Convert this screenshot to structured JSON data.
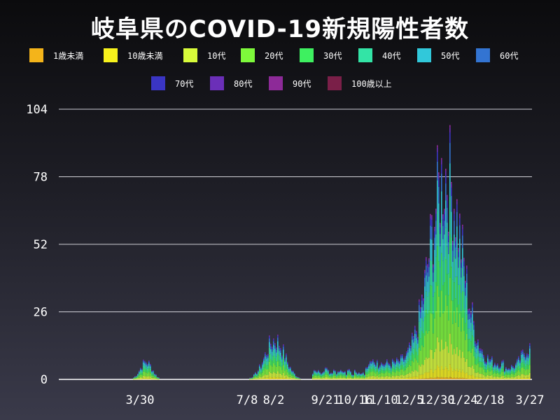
{
  "chart_data": {
    "type": "bar",
    "stacked": true,
    "title": "岐阜県のCOVID-19新規陽性者数",
    "xlabel": "",
    "ylabel": "",
    "ylim": [
      0,
      104
    ],
    "y_ticks": [
      0,
      26,
      52,
      78,
      104
    ],
    "x_ticks": [
      "3/30",
      "7/8",
      "8/2",
      "9/21",
      "10/16",
      "11/10",
      "12/5",
      "12/30",
      "1/24",
      "2/18",
      "3/27"
    ],
    "grid": "horizontal",
    "legend_placement": "top",
    "legend": [
      {
        "name": "1歳未満",
        "color": "#f4b41a"
      },
      {
        "name": "10歳未満",
        "color": "#f7f21c"
      },
      {
        "name": "10代",
        "color": "#d8fb3a"
      },
      {
        "name": "20代",
        "color": "#7ef93b"
      },
      {
        "name": "30代",
        "color": "#3ef060"
      },
      {
        "name": "40代",
        "color": "#33e4a6"
      },
      {
        "name": "50代",
        "color": "#31c8da"
      },
      {
        "name": "60代",
        "color": "#3374d2"
      },
      {
        "name": "70代",
        "color": "#3a35c4"
      },
      {
        "name": "80代",
        "color": "#6b2fb8"
      },
      {
        "name": "90代",
        "color": "#8d2a98"
      },
      {
        "name": "100歳以上",
        "color": "#7a1f48"
      }
    ],
    "approx_daily_totals_peaks": [
      {
        "period": "3/30",
        "peak": 10
      },
      {
        "period": "8/2",
        "peak": 22
      },
      {
        "period": "12/30",
        "peak": 102
      },
      {
        "period": "1/24",
        "peak": 60
      },
      {
        "period": "3/27",
        "peak": 18
      }
    ]
  }
}
